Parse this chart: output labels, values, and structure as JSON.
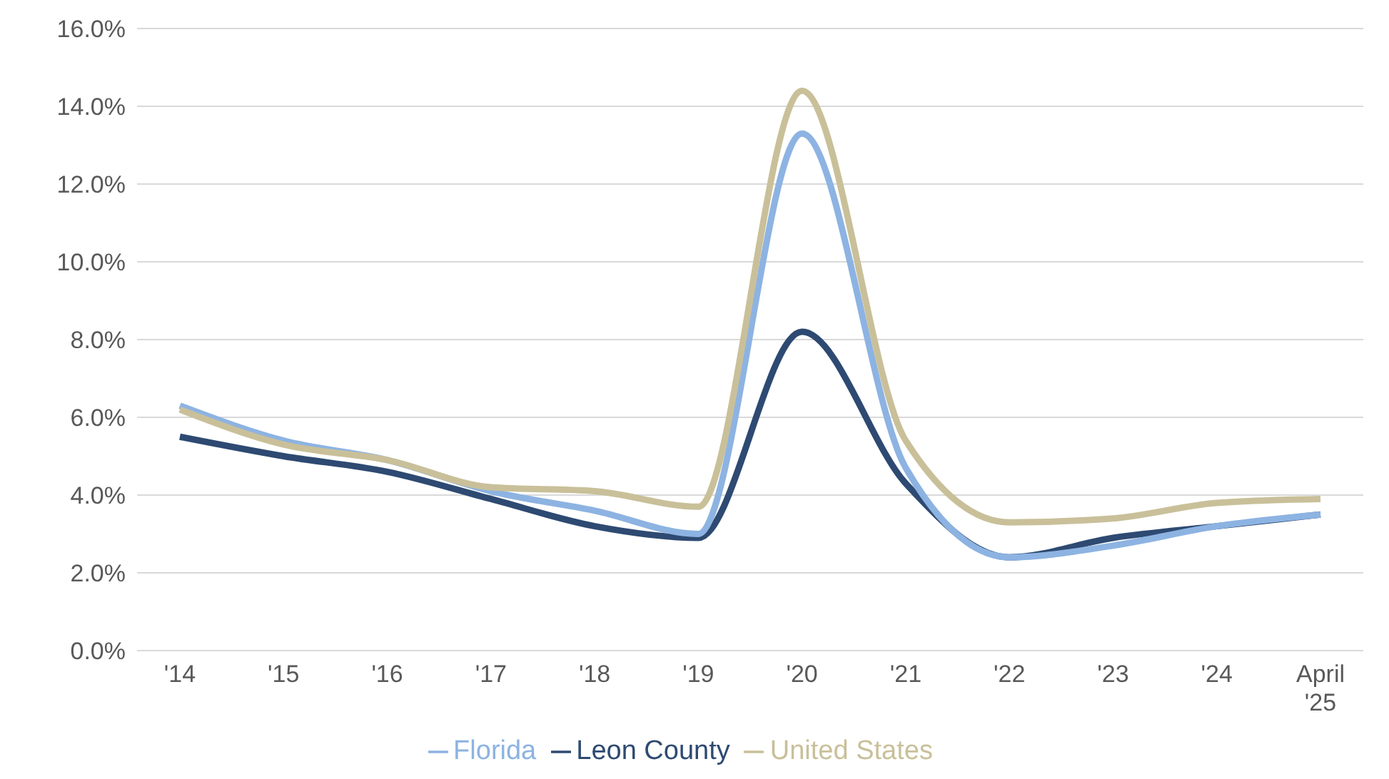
{
  "chart_data": {
    "type": "line",
    "categories": [
      "'14",
      "'15",
      "'16",
      "'17",
      "'18",
      "'19",
      "'20",
      "'21",
      "'22",
      "'23",
      "'24",
      "April '25"
    ],
    "series": [
      {
        "name": "Leon County",
        "color": "#2e4a72",
        "values": [
          5.5,
          5.0,
          4.6,
          3.9,
          3.2,
          2.9,
          8.2,
          4.3,
          2.4,
          2.9,
          3.2,
          3.5
        ]
      },
      {
        "name": "Florida",
        "color": "#8db3e2",
        "values": [
          6.3,
          5.4,
          4.9,
          4.1,
          3.6,
          3.0,
          13.3,
          4.7,
          2.4,
          2.7,
          3.2,
          3.5
        ]
      },
      {
        "name": "United States",
        "color": "#c9c09a",
        "values": [
          6.2,
          5.3,
          4.9,
          4.2,
          4.1,
          3.7,
          14.4,
          5.4,
          3.3,
          3.4,
          3.8,
          3.9
        ]
      }
    ],
    "ylim": [
      0,
      16
    ],
    "yticks": [
      {
        "value": 0,
        "label": "0.0%"
      },
      {
        "value": 2,
        "label": "2.0%"
      },
      {
        "value": 4,
        "label": "4.0%"
      },
      {
        "value": 6,
        "label": "6.0%"
      },
      {
        "value": 8,
        "label": "8.0%"
      },
      {
        "value": 10,
        "label": "10.0%"
      },
      {
        "value": 12,
        "label": "12.0%"
      },
      {
        "value": 14,
        "label": "14.0%"
      },
      {
        "value": 16,
        "label": "16.0%"
      }
    ],
    "grid": "y",
    "legend": "bottom",
    "marker": "none",
    "line_style": "solid"
  }
}
